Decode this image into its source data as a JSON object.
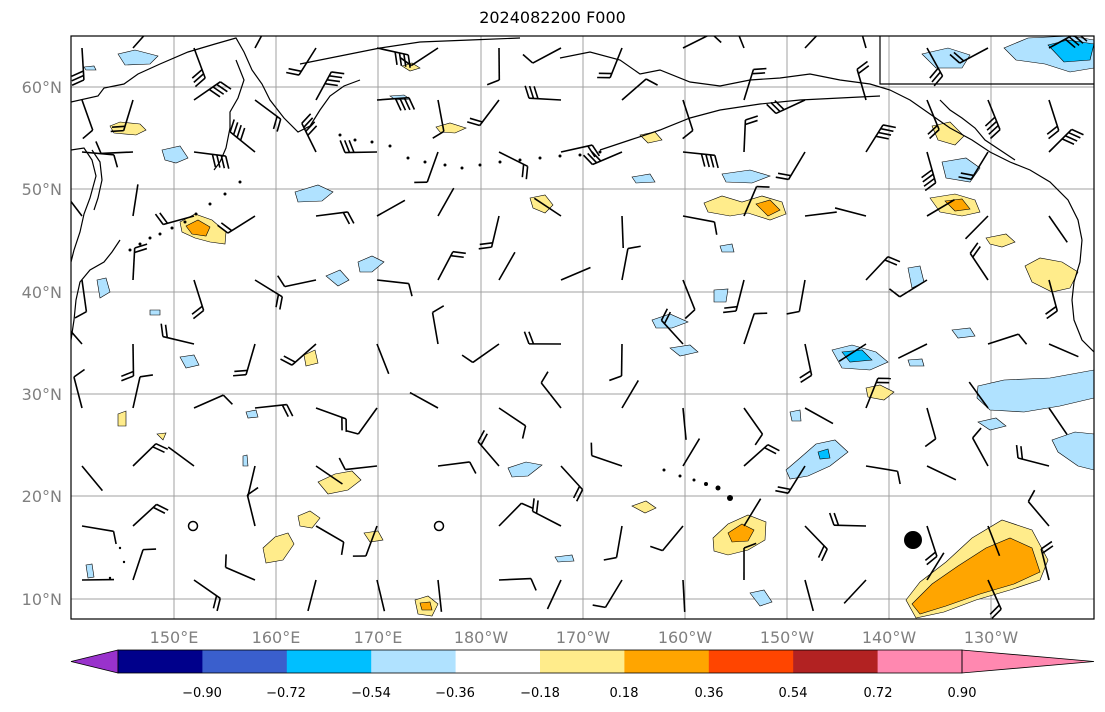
{
  "title": "2024082200 F000",
  "lat_labels": [
    "10°N",
    "20°N",
    "30°N",
    "40°N",
    "50°N",
    "60°N"
  ],
  "lon_labels": [
    "150°E",
    "160°E",
    "170°E",
    "180°W",
    "170°W",
    "160°W",
    "150°W",
    "140°W",
    "130°W"
  ],
  "colorbar": {
    "colors": [
      "#9932cc",
      "#00008b",
      "#3a5fcd",
      "#00bfff",
      "#b0e2ff",
      "#ffffff",
      "#ffec8b",
      "#ffa500",
      "#ff4500",
      "#b22222",
      "#ff88b0"
    ],
    "tick_labels": [
      "−0.90",
      "−0.72",
      "−0.54",
      "−0.36",
      "−0.18",
      "0.18",
      "0.36",
      "0.54",
      "0.72",
      "0.90"
    ]
  }
}
